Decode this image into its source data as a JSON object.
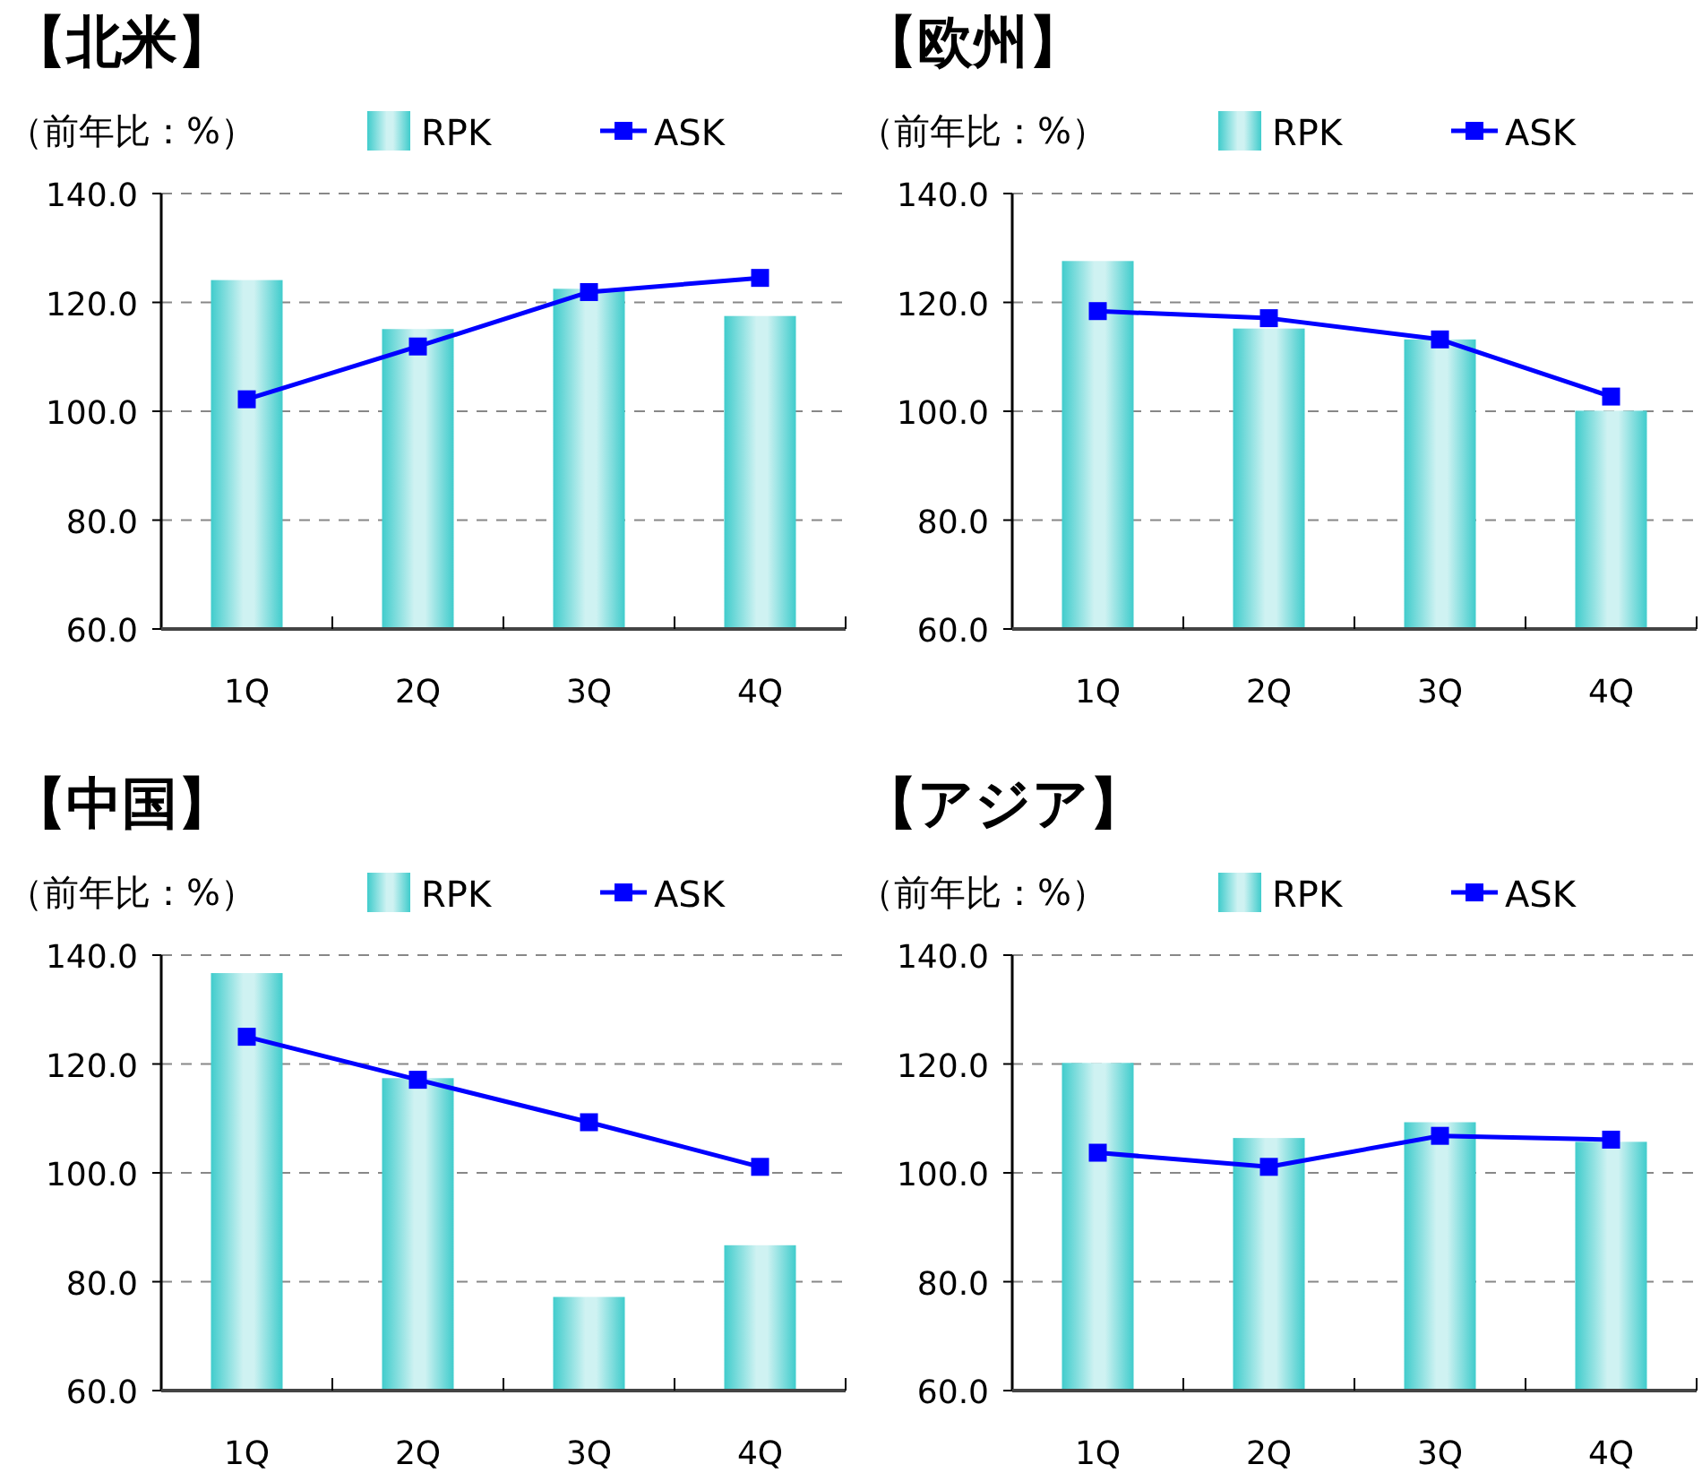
{
  "chart_data": [
    {
      "type": "bar",
      "title": "【北米】",
      "subtitle": "（前年比：%）",
      "categories": [
        "1Q",
        "2Q",
        "3Q",
        "4Q"
      ],
      "series": [
        {
          "name": "RPK",
          "color": "#40cccc",
          "values": [
            124.1,
            115.1,
            122.5,
            117.5
          ]
        },
        {
          "name": "ASK",
          "type": "line",
          "color": "#0000ff",
          "marker": "square",
          "values": [
            102.2,
            111.9,
            121.9,
            124.5
          ]
        }
      ],
      "ylim": [
        60,
        140
      ],
      "yticks": [
        {
          "value": 60,
          "label": "60.0"
        },
        {
          "value": 80,
          "label": "80.0"
        },
        {
          "value": 100,
          "label": "100.0"
        },
        {
          "value": 120,
          "label": "120.0"
        },
        {
          "value": 140,
          "label": "140.0"
        }
      ],
      "grid": "y",
      "legend": "top"
    },
    {
      "type": "bar",
      "title": "【欧州】",
      "subtitle": "（前年比：%）",
      "categories": [
        "1Q",
        "2Q",
        "3Q",
        "4Q"
      ],
      "series": [
        {
          "name": "RPK",
          "color": "#40cccc",
          "values": [
            127.6,
            115.2,
            113.2,
            100.1
          ]
        },
        {
          "name": "ASK",
          "type": "line",
          "color": "#0000ff",
          "marker": "square",
          "values": [
            118.4,
            117.1,
            113.2,
            102.7
          ]
        }
      ],
      "ylim": [
        60,
        140
      ],
      "yticks": [
        {
          "value": 60,
          "label": "60.0"
        },
        {
          "value": 80,
          "label": "80.0"
        },
        {
          "value": 100,
          "label": "100.0"
        },
        {
          "value": 120,
          "label": "120.0"
        },
        {
          "value": 140,
          "label": "140.0"
        }
      ],
      "grid": "y",
      "legend": "top"
    },
    {
      "type": "bar",
      "title": "【中国】",
      "subtitle": "（前年比：%）",
      "categories": [
        "1Q",
        "2Q",
        "3Q",
        "4Q"
      ],
      "series": [
        {
          "name": "RPK",
          "color": "#40cccc",
          "values": [
            136.7,
            117.4,
            77.2,
            86.7
          ]
        },
        {
          "name": "ASK",
          "type": "line",
          "color": "#0000ff",
          "marker": "square",
          "values": [
            125.0,
            117.1,
            109.3,
            101.1
          ]
        }
      ],
      "ylim": [
        60,
        140
      ],
      "yticks": [
        {
          "value": 60,
          "label": "60.0"
        },
        {
          "value": 80,
          "label": "80.0"
        },
        {
          "value": 100,
          "label": "100.0"
        },
        {
          "value": 120,
          "label": "120.0"
        },
        {
          "value": 140,
          "label": "140.0"
        }
      ],
      "grid": "y",
      "legend": "top"
    },
    {
      "type": "bar",
      "title": "【アジア】",
      "subtitle": "（前年比：%）",
      "categories": [
        "1Q",
        "2Q",
        "3Q",
        "4Q"
      ],
      "series": [
        {
          "name": "RPK",
          "color": "#40cccc",
          "values": [
            120.2,
            106.4,
            109.3,
            105.7
          ]
        },
        {
          "name": "ASK",
          "type": "line",
          "color": "#0000ff",
          "marker": "square",
          "values": [
            103.7,
            101.1,
            106.8,
            106.1
          ]
        }
      ],
      "ylim": [
        60,
        140
      ],
      "yticks": [
        {
          "value": 60,
          "label": "60.0"
        },
        {
          "value": 80,
          "label": "80.0"
        },
        {
          "value": 100,
          "label": "100.0"
        },
        {
          "value": 120,
          "label": "120.0"
        },
        {
          "value": 140,
          "label": "140.0"
        }
      ],
      "grid": "y",
      "legend": "top"
    }
  ]
}
